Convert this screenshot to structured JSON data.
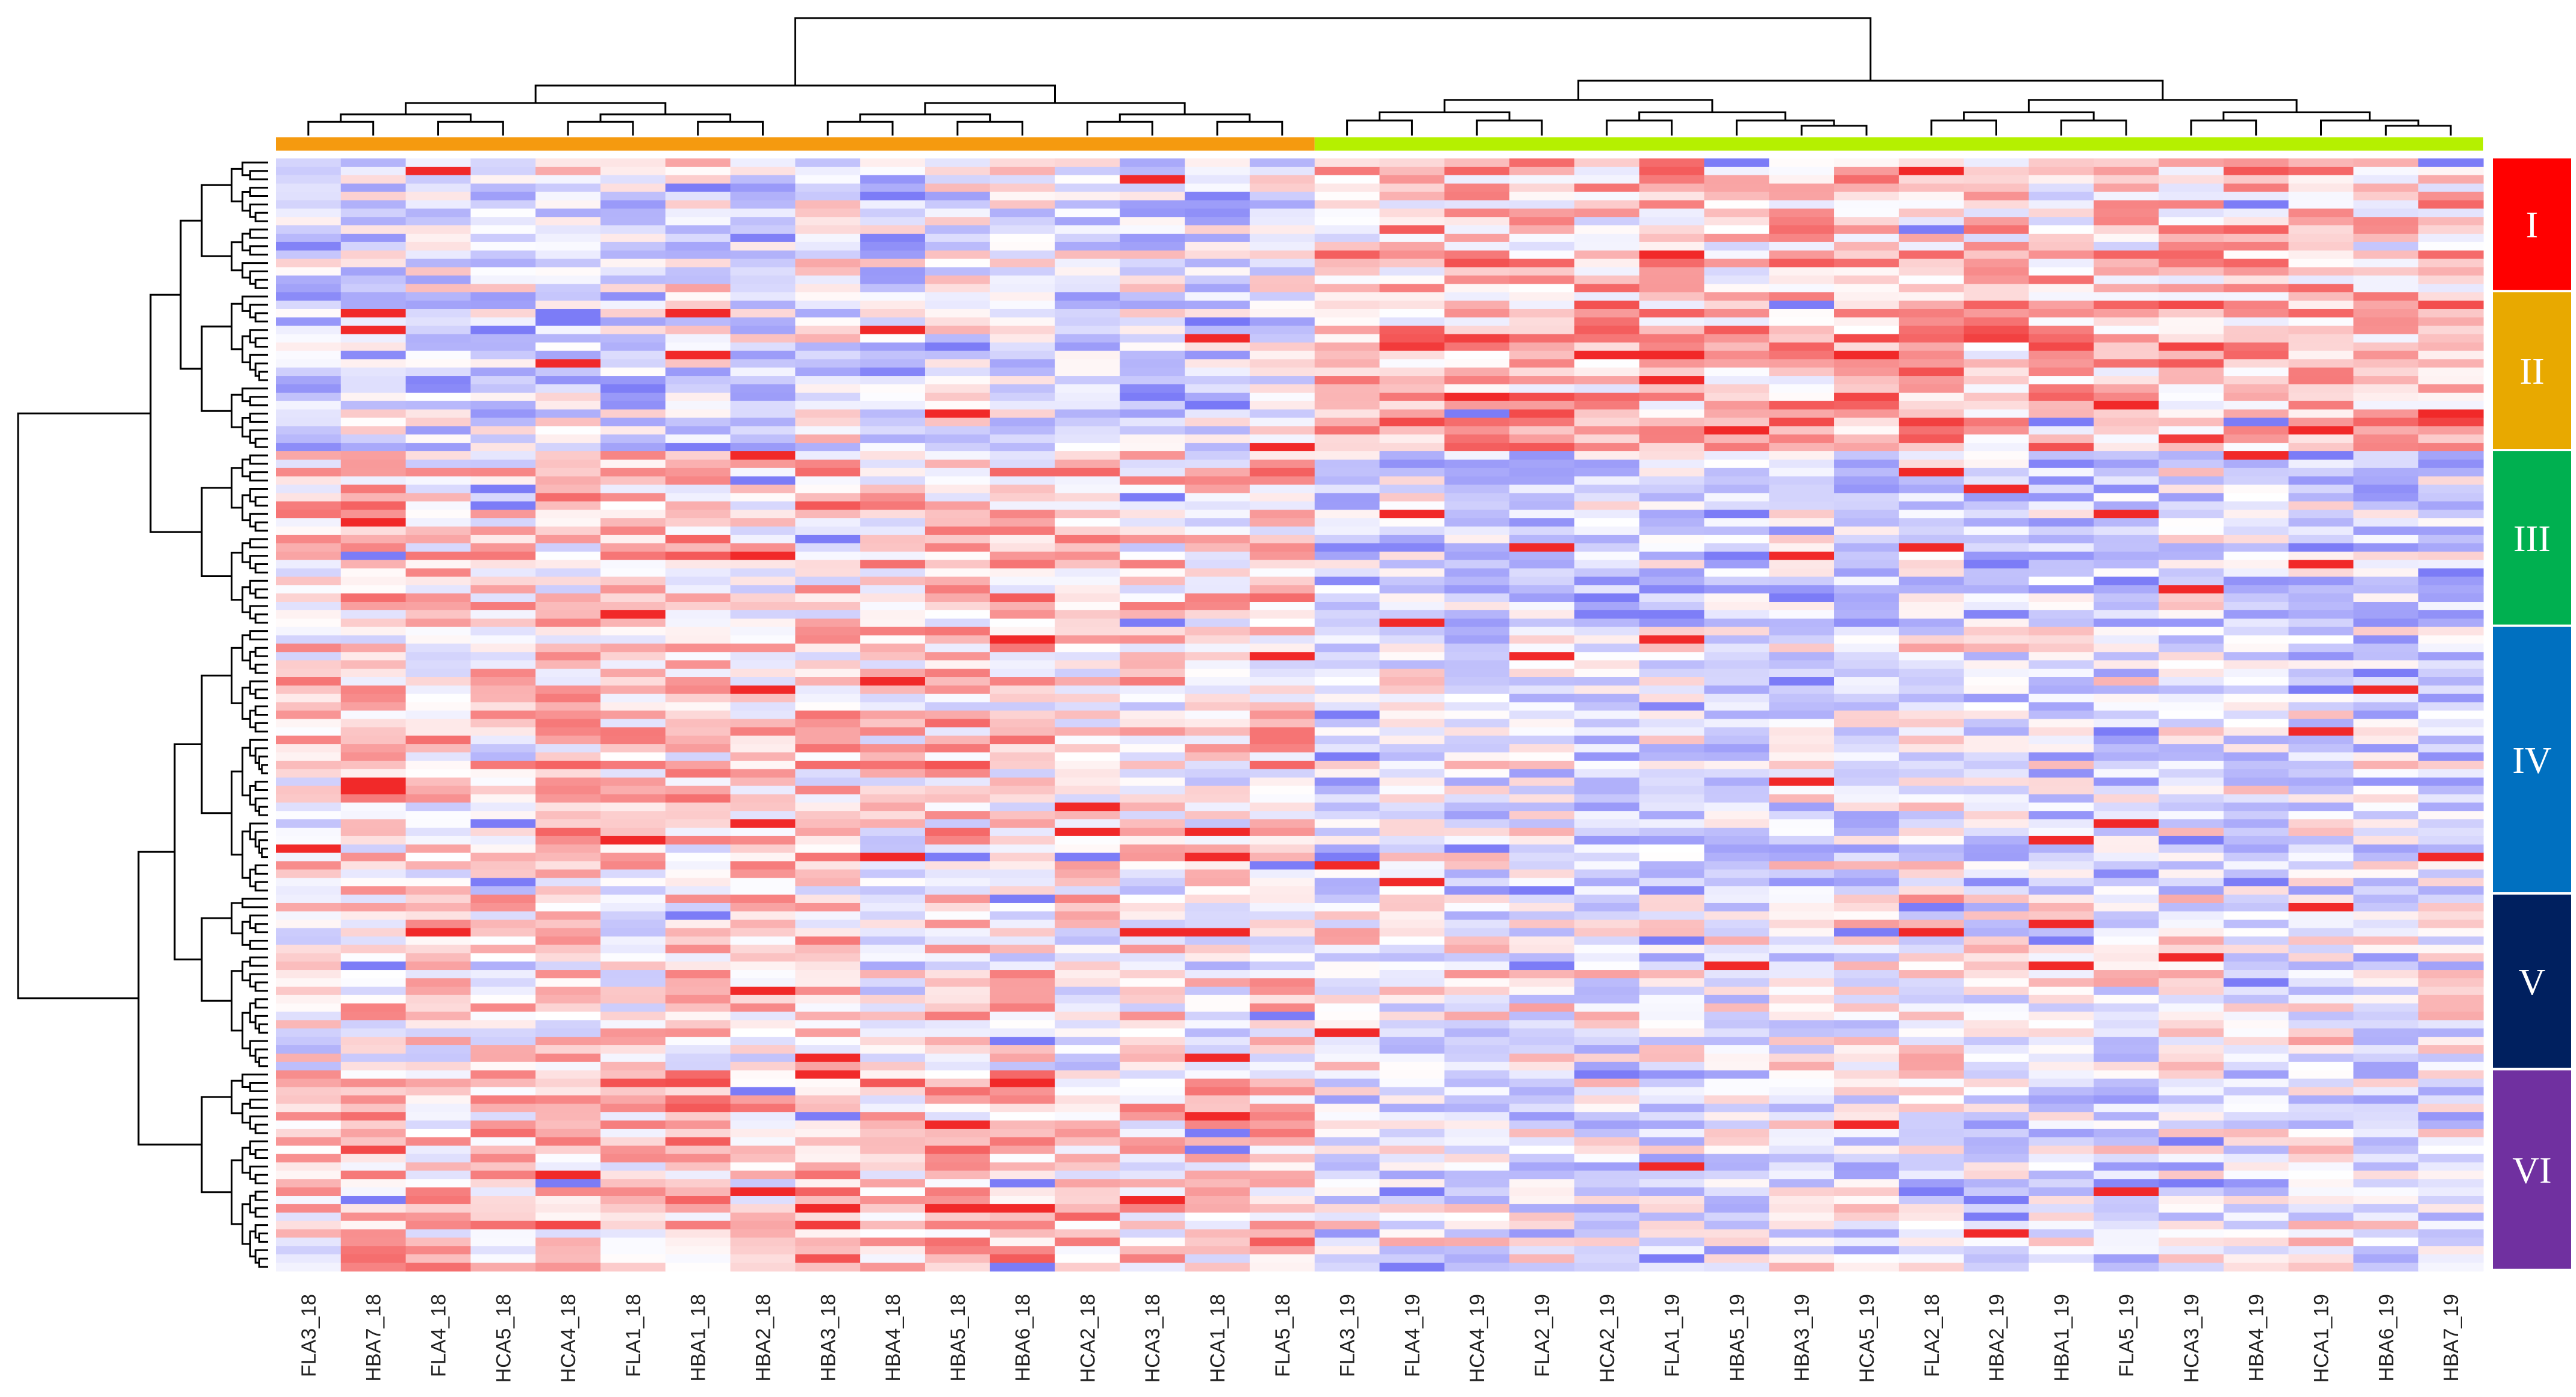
{
  "chart_data": {
    "type": "heatmap",
    "title": "",
    "xlabel": "",
    "ylabel": "",
    "columns": [
      "FLA3_18",
      "HBA7_18",
      "FLA4_18",
      "HCA5_18",
      "HCA4_18",
      "FLA1_18",
      "HBA1_18",
      "HBA2_18",
      "HBA3_18",
      "HBA4_18",
      "HBA5_18",
      "HBA6_18",
      "HCA2_18",
      "HCA3_18",
      "HCA1_18",
      "FLA5_18",
      "FLA3_19",
      "FLA4_19",
      "HCA4_19",
      "FLA2_19",
      "HCA2_19",
      "FLA1_19",
      "HBA5_19",
      "HBA3_19",
      "HCA5_19",
      "FLA2_18",
      "HBA2_19",
      "HBA1_19",
      "FLA5_19",
      "HCA3_19",
      "HBA4_19",
      "HCA1_19",
      "HBA6_19",
      "HBA7_19"
    ],
    "column_groups": [
      {
        "color": "#f59a0f",
        "count": 16
      },
      {
        "color": "#b5f000",
        "count": 18
      }
    ],
    "row_count": 133,
    "row_clusters": [
      {
        "label": "I",
        "color": "#ff0000",
        "rows": 16
      },
      {
        "label": "II",
        "color": "#e8a900",
        "rows": 19
      },
      {
        "label": "III",
        "color": "#00b050",
        "rows": 21
      },
      {
        "label": "IV",
        "color": "#0070c0",
        "rows": 32
      },
      {
        "label": "V",
        "color": "#00205f",
        "rows": 21
      },
      {
        "label": "VI",
        "color": "#7030a0",
        "rows": 24
      }
    ],
    "color_scale": {
      "low": "#5b5bf5",
      "mid": "#ffffff",
      "high": "#f01e1e"
    },
    "grid": false,
    "legend": "none"
  }
}
